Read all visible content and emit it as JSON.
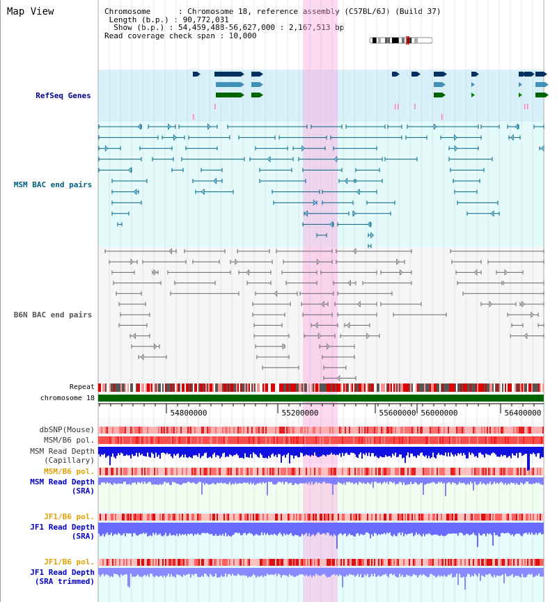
{
  "header": {
    "title": "Map View",
    "info_lines": [
      "Chromosome      : Chromosome 18, reference assembly (C57BL/6J) (Build 37)",
      " Length (b.p.) : 90,772,031",
      "  Show (b.p.) : 54,459,488-56,627,000 : 2,167,513 bp",
      "Read coverage check span : 10,000"
    ]
  },
  "tracks": {
    "refseq": "RefSeq Genes",
    "msm_bac": "MSM BAC end pairs",
    "b6n_bac": "B6N BAC end pairs",
    "repeat": "Repeat",
    "chromosome": "chromosome 18",
    "dbsnp": "dbSNP(Mouse)",
    "msm_b6_pol": "MSM/B6 pol.",
    "msm_read_depth_cap_1": "MSM Read Depth",
    "msm_read_depth_cap_2": "(Capillary)",
    "msm_b6_pol_2": "MSM/B6 pol.",
    "msm_read_depth_sra_1": "MSM Read Depth",
    "msm_read_depth_sra_2": "(SRA)",
    "jf1_b6_pol": "JF1/B6 pol.",
    "jf1_read_depth_sra_1": "JF1 Read Depth",
    "jf1_read_depth_sra_2": "(SRA)",
    "jf1_b6_pol_2": "JF1/B6 pol.",
    "jf1_read_depth_trim_1": "JF1 Read Depth",
    "jf1_read_depth_trim_2": "(SRA trimmed)"
  },
  "axis": {
    "ticks": [
      "54800000",
      "55200000",
      "55600000",
      "56000000",
      "56400000"
    ]
  },
  "colors": {
    "refseq_label": "#00008b",
    "msm_label": "#006080",
    "b6n_label": "#555555",
    "orange_label": "#e0a000",
    "blue_label": "#0000cc",
    "chromosome_bar": "#006400",
    "highlight": "#ff99dd"
  }
}
